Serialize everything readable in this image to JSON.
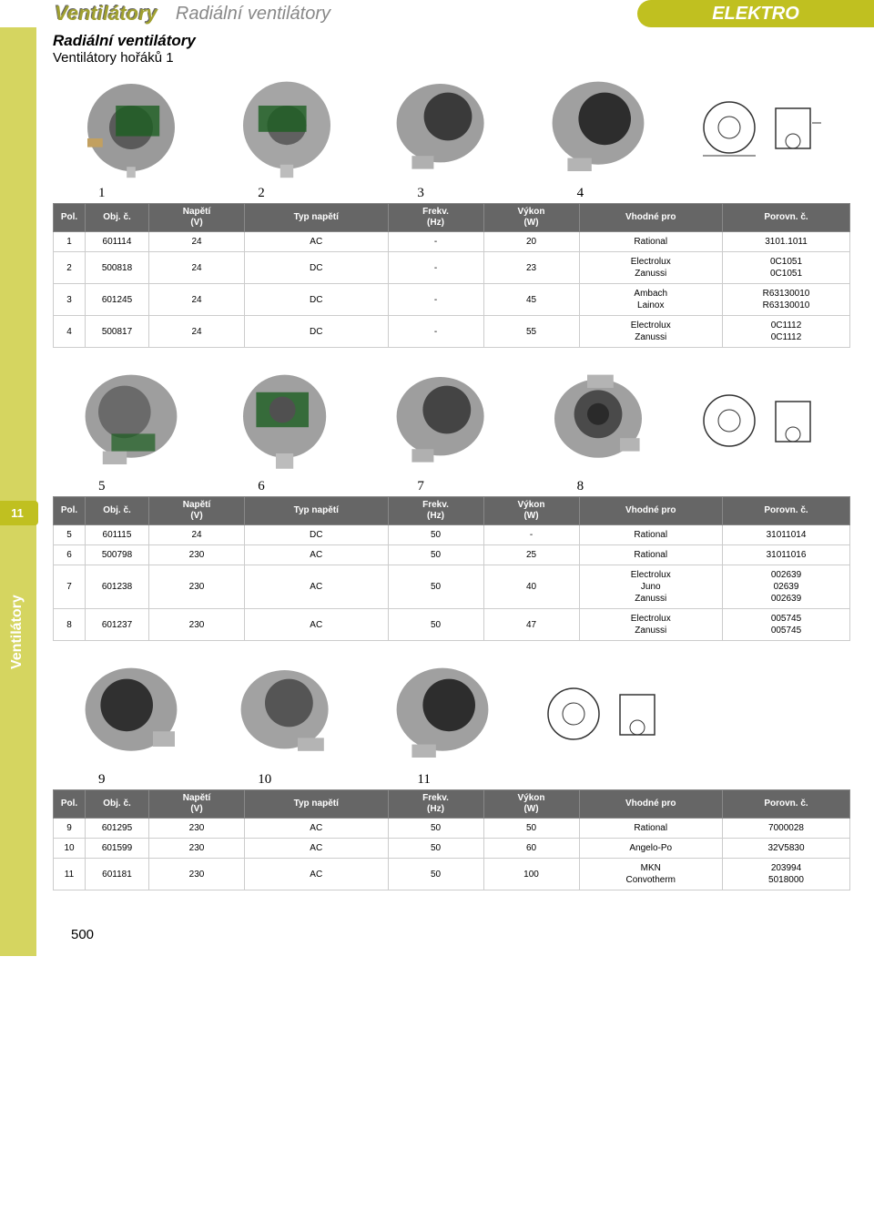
{
  "header": {
    "main": "Ventilátory",
    "sub": "Radiální ventilátory",
    "right": "ELEKTRO"
  },
  "subheader": {
    "title": "Radiální ventilátory",
    "sub": "Ventilátory hořáků 1"
  },
  "side": {
    "tab": "11",
    "vertical": "Ventilátory"
  },
  "columns": {
    "pol": "Pol.",
    "obj": "Obj. č.",
    "v": "Napětí\n(V)",
    "typ": "Typ napětí",
    "hz": "Frekv.\n(Hz)",
    "w": "Výkon\n(W)",
    "pro": "Vhodné pro",
    "por": "Porovn. č."
  },
  "row_nums": {
    "r1": [
      "1",
      "2",
      "3",
      "4"
    ],
    "r2": [
      "5",
      "6",
      "7",
      "8"
    ],
    "r3": [
      "9",
      "10",
      "11"
    ]
  },
  "table1": [
    {
      "pol": "1",
      "obj": "601114",
      "v": "24",
      "typ": "AC",
      "hz": "-",
      "w": "20",
      "pro": "Rational",
      "por": "3101.1011"
    },
    {
      "pol": "2",
      "obj": "500818",
      "v": "24",
      "typ": "DC",
      "hz": "-",
      "w": "23",
      "pro": "Electrolux\nZanussi",
      "por": "0C1051\n0C1051"
    },
    {
      "pol": "3",
      "obj": "601245",
      "v": "24",
      "typ": "DC",
      "hz": "-",
      "w": "45",
      "pro": "Ambach\nLainox",
      "por": "R63130010\nR63130010"
    },
    {
      "pol": "4",
      "obj": "500817",
      "v": "24",
      "typ": "DC",
      "hz": "-",
      "w": "55",
      "pro": "Electrolux\nZanussi",
      "por": "0C1112\n0C1112"
    }
  ],
  "table2": [
    {
      "pol": "5",
      "obj": "601115",
      "v": "24",
      "typ": "DC",
      "hz": "50",
      "w": "-",
      "pro": "Rational",
      "por": "31011014"
    },
    {
      "pol": "6",
      "obj": "500798",
      "v": "230",
      "typ": "AC",
      "hz": "50",
      "w": "25",
      "pro": "Rational",
      "por": "31011016"
    },
    {
      "pol": "7",
      "obj": "601238",
      "v": "230",
      "typ": "AC",
      "hz": "50",
      "w": "40",
      "pro": "Electrolux\nJuno\nZanussi",
      "por": "002639\n02639\n002639"
    },
    {
      "pol": "8",
      "obj": "601237",
      "v": "230",
      "typ": "AC",
      "hz": "50",
      "w": "47",
      "pro": "Electrolux\nZanussi",
      "por": "005745\n005745"
    }
  ],
  "table3": [
    {
      "pol": "9",
      "obj": "601295",
      "v": "230",
      "typ": "AC",
      "hz": "50",
      "w": "50",
      "pro": "Rational",
      "por": "7000028"
    },
    {
      "pol": "10",
      "obj": "601599",
      "v": "230",
      "typ": "AC",
      "hz": "50",
      "w": "60",
      "pro": "Angelo-Po",
      "por": "32V5830"
    },
    {
      "pol": "11",
      "obj": "601181",
      "v": "230",
      "typ": "AC",
      "hz": "50",
      "w": "100",
      "pro": "MKN\nConvotherm",
      "por": "203994\n5018000"
    }
  ],
  "page_number": "500",
  "colors": {
    "accent": "#c0c020",
    "side_bg": "#d5d560",
    "header_bg": "#666666"
  }
}
